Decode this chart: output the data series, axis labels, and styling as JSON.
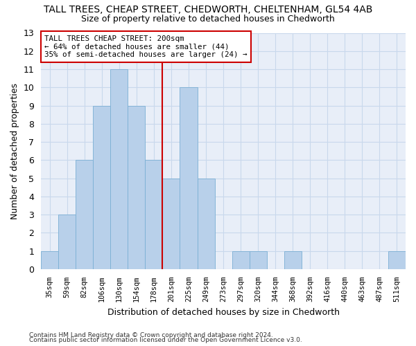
{
  "title": "TALL TREES, CHEAP STREET, CHEDWORTH, CHELTENHAM, GL54 4AB",
  "subtitle": "Size of property relative to detached houses in Chedworth",
  "xlabel": "Distribution of detached houses by size in Chedworth",
  "ylabel": "Number of detached properties",
  "bar_labels": [
    "35sqm",
    "59sqm",
    "82sqm",
    "106sqm",
    "130sqm",
    "154sqm",
    "178sqm",
    "201sqm",
    "225sqm",
    "249sqm",
    "273sqm",
    "297sqm",
    "320sqm",
    "344sqm",
    "368sqm",
    "392sqm",
    "416sqm",
    "440sqm",
    "463sqm",
    "487sqm",
    "511sqm"
  ],
  "bar_values": [
    1,
    3,
    6,
    9,
    11,
    9,
    6,
    5,
    10,
    5,
    0,
    1,
    1,
    0,
    1,
    0,
    0,
    0,
    0,
    0,
    1
  ],
  "bar_color": "#b8d0ea",
  "bar_edge_color": "#7aafd4",
  "marker_index": 7,
  "marker_color": "#cc0000",
  "annotation_line1": "TALL TREES CHEAP STREET: 200sqm",
  "annotation_line2": "← 64% of detached houses are smaller (44)",
  "annotation_line3": "35% of semi-detached houses are larger (24) →",
  "annotation_box_color": "#ffffff",
  "annotation_box_edge_color": "#cc0000",
  "ylim": [
    0,
    13
  ],
  "yticks": [
    0,
    1,
    2,
    3,
    4,
    5,
    6,
    7,
    8,
    9,
    10,
    11,
    12,
    13
  ],
  "grid_color": "#c8d8ec",
  "background_color": "#e8eef8",
  "footer1": "Contains HM Land Registry data © Crown copyright and database right 2024.",
  "footer2": "Contains public sector information licensed under the Open Government Licence v3.0."
}
